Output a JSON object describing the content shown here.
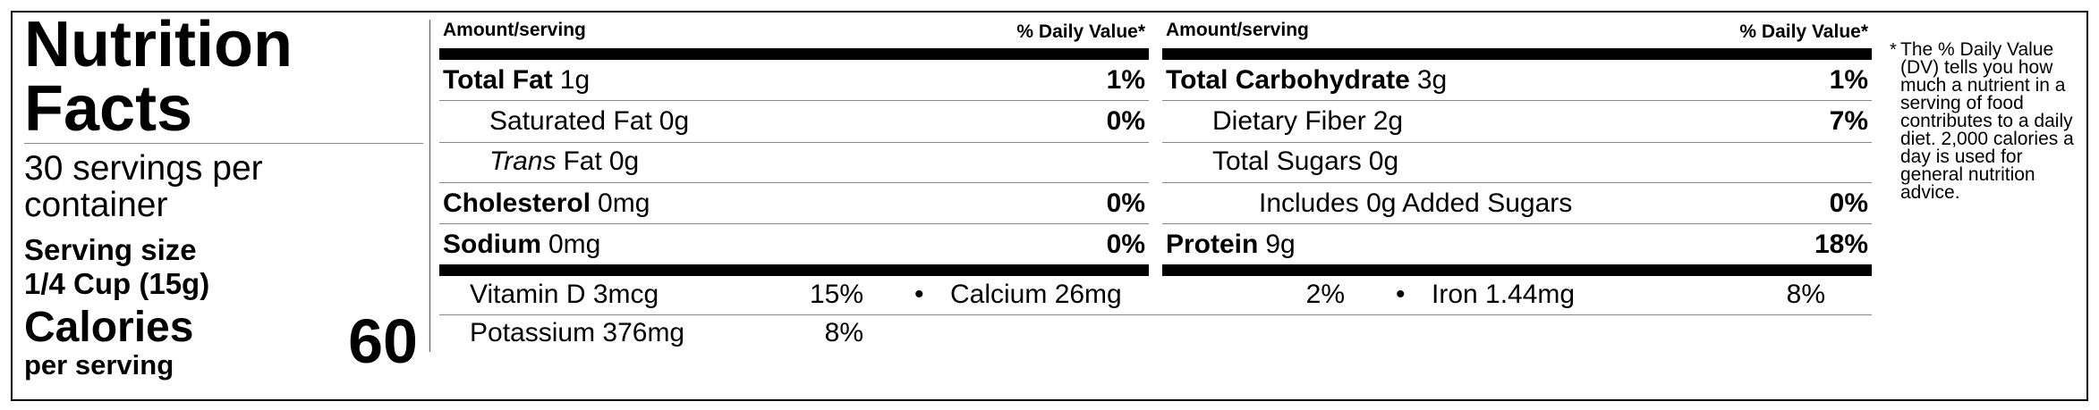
{
  "header": {
    "title": "Nutrition Facts",
    "servings": "30 servings per container",
    "serving_size_label": "Serving size",
    "serving_size": "1/4 Cup (15g)",
    "calories_label": "Calories",
    "calories_sub": "per serving",
    "calories": 60
  },
  "columns": [
    {
      "amount_header": "Amount/serving",
      "dv_header": "% Daily Value*",
      "rows": [
        {
          "name": "Total Fat",
          "amount": "1g",
          "dv": "1%",
          "bold": true,
          "indent": 0
        },
        {
          "name": "Saturated Fat",
          "amount": "0g",
          "dv": "0%",
          "bold": false,
          "indent": 1
        },
        {
          "italic_prefix": "Trans",
          "name": "Fat",
          "amount": "0g",
          "bold": false,
          "indent": 1
        },
        {
          "name": "Cholesterol",
          "amount": "0mg",
          "dv": "0%",
          "bold": true,
          "indent": 0
        },
        {
          "name": "Sodium",
          "amount": "0mg",
          "dv": "0%",
          "bold": true,
          "indent": 0
        }
      ]
    },
    {
      "amount_header": "Amount/serving",
      "dv_header": "% Daily Value*",
      "rows": [
        {
          "name": "Total Carbohydrate",
          "amount": "3g",
          "dv": "1%",
          "bold": true,
          "indent": 0
        },
        {
          "name": "Dietary Fiber",
          "amount": "2g",
          "dv": "7%",
          "bold": false,
          "indent": 1
        },
        {
          "name": "Total Sugars",
          "amount": "0g",
          "bold": false,
          "indent": 1
        },
        {
          "name": "Includes 0g Added Sugars",
          "dv": "0%",
          "bold": false,
          "indent": 2
        },
        {
          "name": "Protein",
          "amount": "9g",
          "dv": "18%",
          "bold": true,
          "indent": 0
        }
      ]
    }
  ],
  "vitamins": [
    {
      "name": "Vitamin D 3mcg",
      "dv": "15%"
    },
    {
      "name": "Calcium 26mg",
      "dv": "2%"
    },
    {
      "name": "Iron 1.44mg",
      "dv": "8%"
    },
    {
      "name": "Potassium 376mg",
      "dv": "8%"
    }
  ],
  "footnote": {
    "mark": "*",
    "text": "The % Daily Value (DV) tells you how much a nutrient in a serving of food contributes to a daily diet. 2,000 calories a day is used for general nutrition advice."
  }
}
